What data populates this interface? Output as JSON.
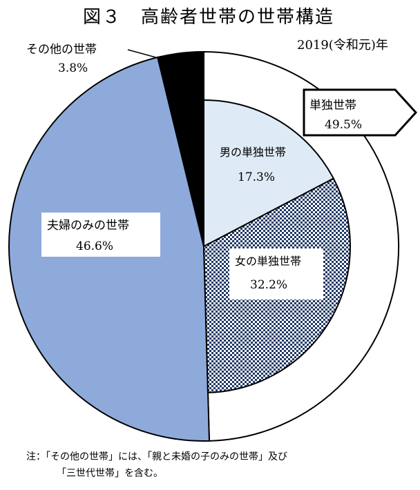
{
  "chart_data": {
    "type": "pie",
    "title": "図３　高齢者世帯の世帯構造",
    "subtitle": "2019(令和元)年",
    "outer": [
      {
        "label": "単独世帯",
        "value": 49.5,
        "value_text": "49.5%",
        "color": "#ffffff"
      },
      {
        "label": "夫婦のみの世帯",
        "value": 46.6,
        "value_text": "46.6%",
        "color": "#8eaadb"
      },
      {
        "label": "その他の世帯",
        "value": 3.8,
        "value_text": "3.8%",
        "color": "#000000"
      }
    ],
    "inner": [
      {
        "label": "男の単独世帯",
        "value": 17.3,
        "value_text": "17.3%",
        "color": "#deebf7"
      },
      {
        "label": "女の単独世帯",
        "value": 32.2,
        "value_text": "32.2%",
        "color": "checker"
      }
    ],
    "note_line1": "注：「その他の世帯」には、「親と未婚の子のみの世帯」及び",
    "note_line2": "「三世代世帯」を含む。"
  }
}
